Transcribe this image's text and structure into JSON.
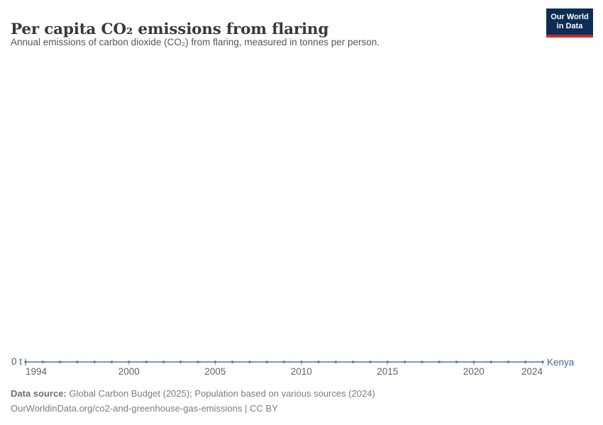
{
  "header": {
    "title": "Per capita CO₂ emissions from flaring",
    "subtitle": "Annual emissions of carbon dioxide (CO₂) from flaring, measured in tonnes per person."
  },
  "logo": {
    "line1": "Our World",
    "line2": "in Data",
    "bg_color": "#0d2d54",
    "accent_color": "#cf2a27"
  },
  "chart_data": {
    "type": "line",
    "title": "Per capita CO₂ emissions from flaring",
    "unit": "tonnes per person",
    "x": [
      1994,
      1995,
      1996,
      1997,
      1998,
      1999,
      2000,
      2001,
      2002,
      2003,
      2004,
      2005,
      2006,
      2007,
      2008,
      2009,
      2010,
      2011,
      2012,
      2013,
      2014,
      2015,
      2016,
      2017,
      2018,
      2019,
      2020,
      2021,
      2022,
      2023,
      2024
    ],
    "series": [
      {
        "name": "Kenya",
        "color": "#5077b0",
        "values": [
          0,
          0,
          0,
          0,
          0,
          0,
          0,
          0,
          0,
          0,
          0,
          0,
          0,
          0,
          0,
          0,
          0,
          0,
          0,
          0,
          0,
          0,
          0,
          0,
          0,
          0,
          0,
          0,
          0,
          0,
          0
        ]
      }
    ],
    "x_tick_years": [
      1994,
      2000,
      2005,
      2010,
      2015,
      2020,
      2024
    ],
    "y_axis": {
      "zero_label": "0 t",
      "ylim": [
        0,
        0
      ],
      "grid": false
    },
    "legend_position": "end-of-line",
    "marker": "dot-every-year"
  },
  "axis": {
    "y_zero_label": "0 t"
  },
  "footer": {
    "datasource_label": "Data source:",
    "datasource_rest": " Global Carbon Budget (2025); Population based on various sources (2024)",
    "link_line": "OurWorldinData.org/co2-and-greenhouse-gas-emissions | CC BY"
  }
}
